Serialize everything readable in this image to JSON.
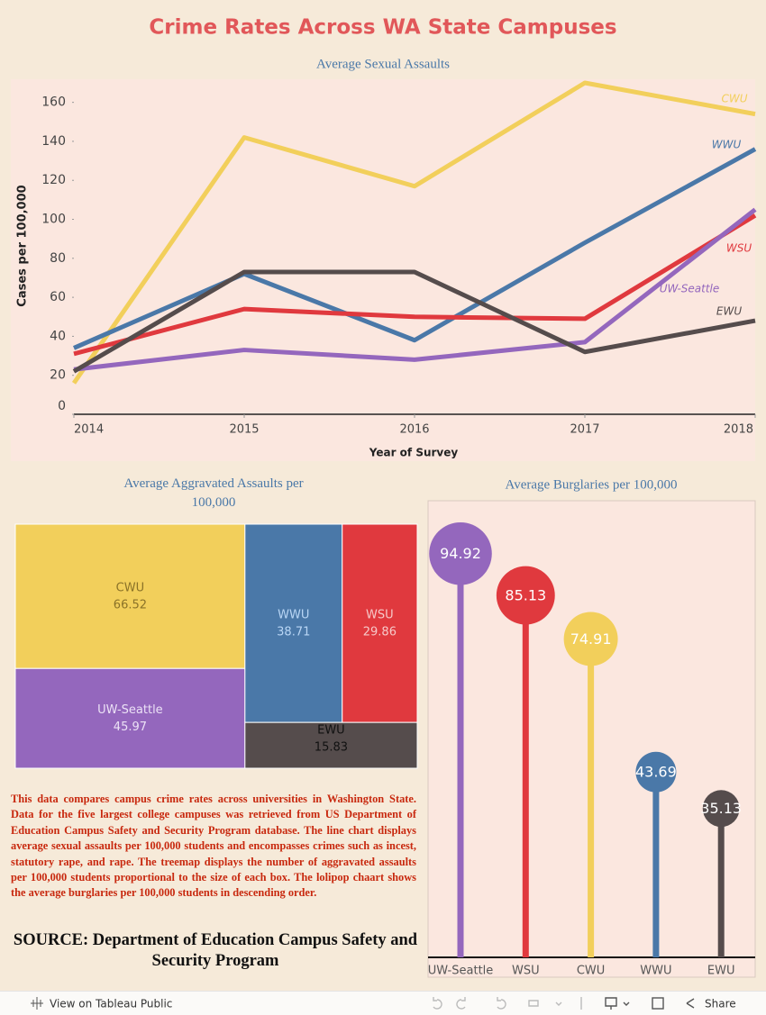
{
  "title": "Crime Rates Across WA State Campuses",
  "chart_data": [
    {
      "type": "line",
      "title": "Average Sexual Assaults",
      "x_label": "Year of Survey",
      "y_label": "Cases per 100,000",
      "x": [
        2014,
        2015,
        2016,
        2017,
        2018
      ],
      "xlim": [
        2014,
        2018
      ],
      "xticks": [
        2014,
        2015,
        2016,
        2017,
        2018
      ],
      "ylim": [
        0,
        170
      ],
      "yticks": [
        0,
        20,
        40,
        60,
        80,
        100,
        120,
        140,
        160
      ],
      "grid": false,
      "series": [
        {
          "name": "CWU",
          "color": "#f2cf5b",
          "values": [
            16,
            142,
            117,
            170,
            154
          ]
        },
        {
          "name": "WWU",
          "color": "#4a78a8",
          "values": [
            34,
            72,
            38,
            88,
            136
          ]
        },
        {
          "name": "WSU",
          "color": "#e0393e",
          "values": [
            31,
            54,
            50,
            49,
            102
          ]
        },
        {
          "name": "UW-Seattle",
          "color": "#9467bd",
          "values": [
            23,
            33,
            28,
            37,
            105
          ]
        },
        {
          "name": "EWU",
          "color": "#554c4c",
          "values": [
            22,
            73,
            73,
            32,
            48
          ]
        }
      ]
    },
    {
      "type": "treemap",
      "title": "Average Aggravated Assaults per 100,000",
      "categories": [
        "CWU",
        "UW-Seattle",
        "WWU",
        "WSU",
        "EWU"
      ],
      "values": [
        66.52,
        45.97,
        38.71,
        29.86,
        15.83
      ],
      "colors": [
        "#f2cf5b",
        "#9467bd",
        "#4a78a8",
        "#e0393e",
        "#554c4c"
      ],
      "label_colors": [
        "#8a7228",
        "#ece2f6",
        "#b9d6f5",
        "#f6c9c9",
        "#111111"
      ]
    },
    {
      "type": "lollipop",
      "title": "Average Burglaries per 100,000",
      "categories": [
        "UW-Seattle",
        "WSU",
        "CWU",
        "WWU",
        "EWU"
      ],
      "values": [
        94.92,
        85.13,
        74.91,
        43.69,
        35.13
      ],
      "colors": [
        "#9467bd",
        "#e0393e",
        "#f2cf5b",
        "#4a78a8",
        "#554c4c"
      ]
    }
  ],
  "description": "This data compares campus crime rates across universities in Washington State. Data for the five largest college campuses was retrieved from US Department of Education Campus Safety and Security Program database. The line chart displays average sexual assaults per 100,000 students and encompasses crimes such as incest, statutory rape, and rape. The treemap displays the number of aggravated assaults per 100,000 students proportional to the size of each box. The lolipop chaart shows the average burglaries per 100,000 students in descending order.",
  "source": "SOURCE: Department of Education Campus Safety and Security Program",
  "footer": {
    "view": "View on Tableau Public",
    "share": "Share"
  }
}
